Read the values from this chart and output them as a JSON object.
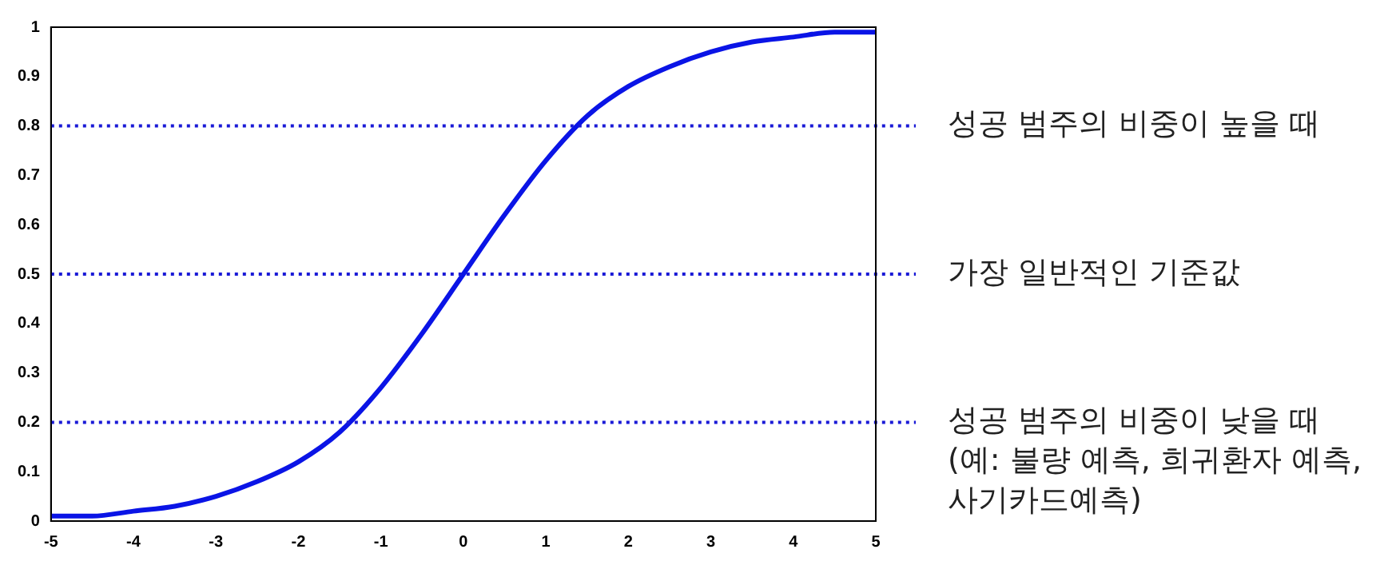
{
  "chart_data": {
    "type": "line",
    "x": [
      -5,
      -4.5,
      -4,
      -3.5,
      -3,
      -2.5,
      -2,
      -1.5,
      -1,
      -0.5,
      0,
      0.5,
      1,
      1.5,
      2,
      2.5,
      3,
      3.5,
      4,
      4.5,
      5
    ],
    "series": [
      {
        "color": "#0a14e6",
        "values": [
          0.01,
          0.01,
          0.02,
          0.03,
          0.05,
          0.08,
          0.12,
          0.18,
          0.27,
          0.38,
          0.5,
          0.62,
          0.73,
          0.82,
          0.88,
          0.92,
          0.95,
          0.97,
          0.98,
          0.99,
          0.99
        ]
      }
    ],
    "xlim": [
      -5,
      5
    ],
    "xticks": [
      -5,
      -4,
      -3,
      -2,
      -1,
      0,
      1,
      2,
      3,
      4,
      5
    ],
    "ylim": [
      0,
      1
    ],
    "yticks": [
      0,
      0.1,
      0.2,
      0.3,
      0.4,
      0.5,
      0.6,
      0.7,
      0.8,
      0.9,
      1
    ],
    "marker": "none",
    "line_style": "solid",
    "grid": false,
    "legend": false,
    "ref_lines": [
      {
        "axis": "y",
        "value": 0.8,
        "label": "성공 범주의 비중이 높을 때",
        "color": "#1a1ad6",
        "line_style": "dotted"
      },
      {
        "axis": "y",
        "value": 0.5,
        "label": "가장 일반적인 기준값",
        "color": "#1a1ad6",
        "line_style": "dotted"
      },
      {
        "axis": "y",
        "value": 0.2,
        "label": "성공 범주의 비중이 낮을 때\n(예: 불량 예측, 희귀환자 예측,\n사기카드예측)",
        "color": "#1a1ad6",
        "line_style": "dotted"
      }
    ]
  }
}
